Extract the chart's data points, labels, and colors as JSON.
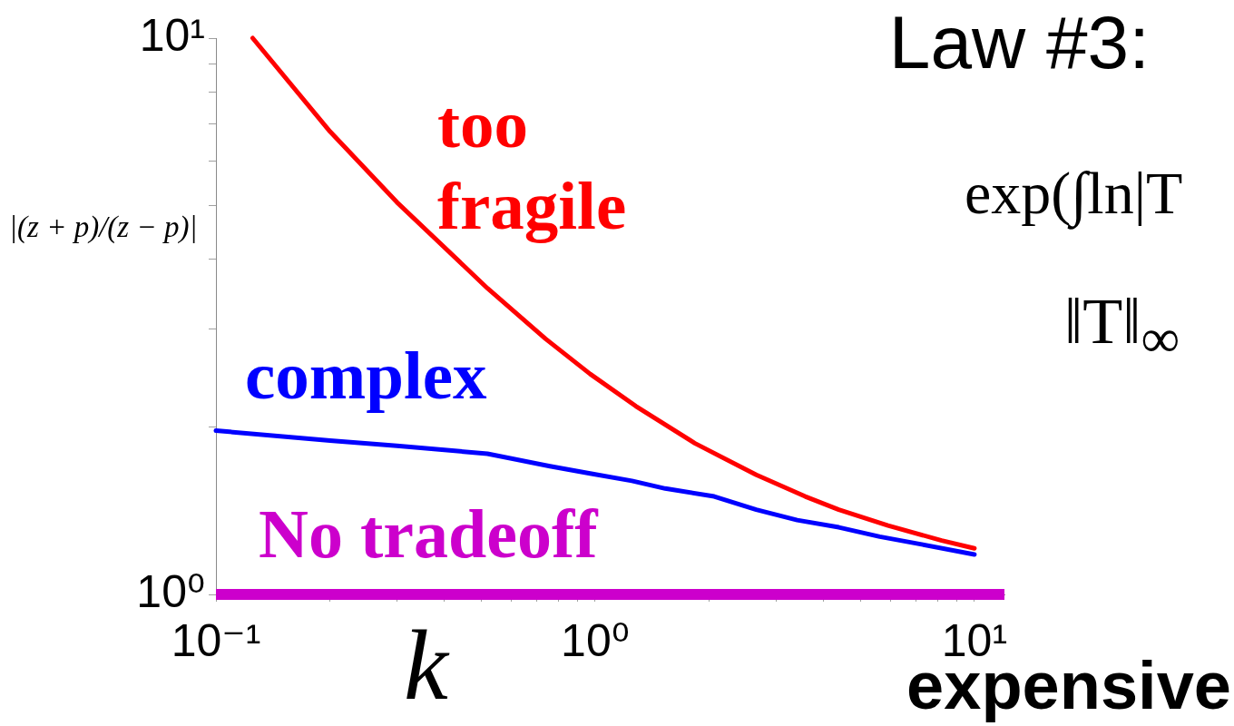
{
  "chart_data": {
    "type": "line",
    "title": "Law #3:",
    "xlabel": "k",
    "ylabel": "|(z + p)/(z − p)|",
    "annotations": [
      "exp(∫ln|T",
      "‖T‖$_{∞}$",
      "expensive"
    ],
    "series": [
      {
        "name": "too fragile",
        "color": "#ff0000",
        "x": [
          0.125,
          0.2,
          0.3,
          0.52,
          0.74,
          0.97,
          1.28,
          1.83,
          2.66,
          3.58,
          4.39,
          5.92,
          8.2,
          10
        ],
        "values": [
          10,
          6.79,
          5.07,
          3.55,
          2.88,
          2.49,
          2.18,
          1.87,
          1.64,
          1.5,
          1.42,
          1.33,
          1.25,
          1.21
        ]
      },
      {
        "name": "complex",
        "color": "#0000ff",
        "x": [
          0.1,
          0.2,
          0.3,
          0.52,
          0.76,
          0.97,
          1.25,
          1.53,
          2.06,
          2.66,
          3.41,
          4.39,
          5.63,
          7.26,
          10
        ],
        "values": [
          1.97,
          1.89,
          1.85,
          1.79,
          1.7,
          1.65,
          1.6,
          1.55,
          1.5,
          1.42,
          1.36,
          1.32,
          1.27,
          1.23,
          1.18
        ]
      },
      {
        "name": "No tradeoff",
        "color": "#cc00cc",
        "x": [
          0.1,
          12
        ],
        "values": [
          1,
          1
        ]
      }
    ],
    "xlim": [
      0.1,
      12
    ],
    "ylim": [
      1,
      10
    ],
    "xticks": [
      {
        "value": 0.1,
        "label": "10⁻¹"
      },
      {
        "value": 0.2,
        "label": null
      },
      {
        "value": 0.3,
        "label": null
      },
      {
        "value": 0.4,
        "label": null
      },
      {
        "value": 0.5,
        "label": null
      },
      {
        "value": 0.6,
        "label": null
      },
      {
        "value": 0.7,
        "label": null
      },
      {
        "value": 0.8,
        "label": null
      },
      {
        "value": 0.9,
        "label": null
      },
      {
        "value": 1,
        "label": "10⁰"
      },
      {
        "value": 2,
        "label": null
      },
      {
        "value": 3,
        "label": null
      },
      {
        "value": 4,
        "label": null
      },
      {
        "value": 5,
        "label": null
      },
      {
        "value": 6,
        "label": null
      },
      {
        "value": 7,
        "label": null
      },
      {
        "value": 8,
        "label": null
      },
      {
        "value": 9,
        "label": null
      },
      {
        "value": 10,
        "label": "10¹"
      }
    ],
    "yticks": [
      {
        "value": 1,
        "label": "10⁰"
      },
      {
        "value": 2,
        "label": null
      },
      {
        "value": 3,
        "label": null
      },
      {
        "value": 4,
        "label": null
      },
      {
        "value": 5,
        "label": null
      },
      {
        "value": 6,
        "label": null
      },
      {
        "value": 7,
        "label": null
      },
      {
        "value": 8,
        "label": null
      },
      {
        "value": 9,
        "label": null
      },
      {
        "value": 10,
        "label": "10¹"
      }
    ],
    "log": "xy",
    "grid": false,
    "legend": false,
    "marker": "none",
    "line_style": "solid"
  }
}
